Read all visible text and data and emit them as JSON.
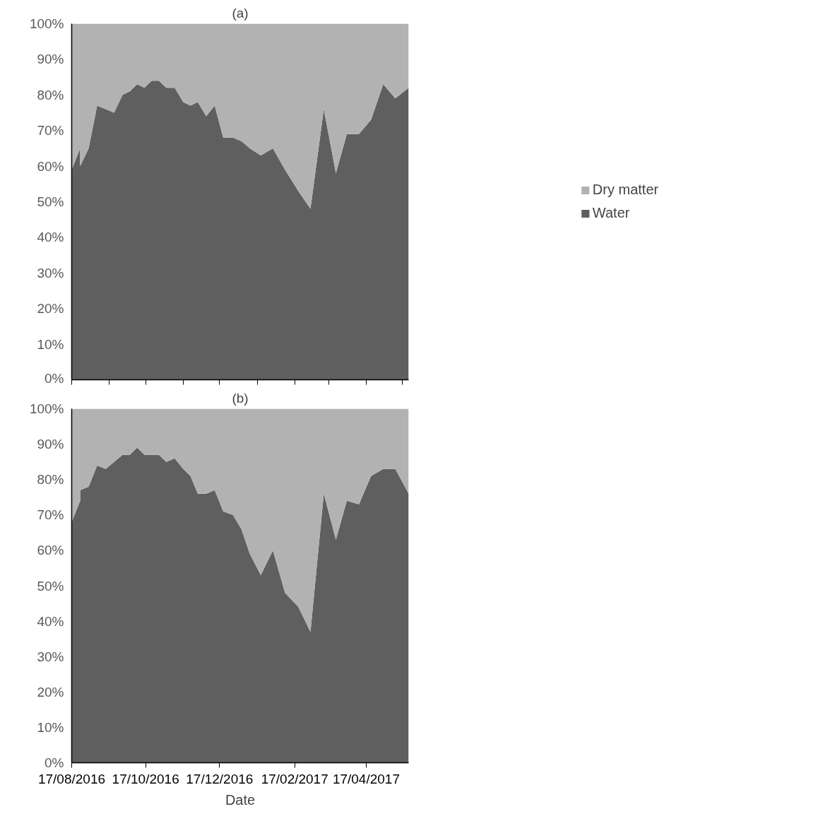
{
  "chart_data": [
    {
      "type": "area",
      "title": "(a)",
      "stacked": true,
      "legend": "right",
      "tick_labels": "y",
      "x": [
        "2016-08-17",
        "2016-08-24",
        "2016-08-24",
        "2016-08-31",
        "2016-09-07",
        "2016-09-14",
        "2016-09-21",
        "2016-09-28",
        "2016-10-04",
        "2016-10-10",
        "2016-10-16",
        "2016-10-22",
        "2016-10-28",
        "2016-11-03",
        "2016-11-10",
        "2016-11-17",
        "2016-11-23",
        "2016-11-29",
        "2016-12-06",
        "2016-12-13",
        "2016-12-20",
        "2016-12-28",
        "2017-01-04",
        "2017-01-11",
        "2017-01-20",
        "2017-01-30",
        "2017-02-09",
        "2017-02-20",
        "2017-03-02",
        "2017-03-13",
        "2017-03-23",
        "2017-04-01",
        "2017-04-11",
        "2017-04-21",
        "2017-05-01",
        "2017-05-11",
        "2017-05-22"
      ],
      "series": [
        {
          "name": "Water",
          "color": "#5f5f5f",
          "values": [
            59,
            65,
            60,
            65,
            77,
            76,
            75,
            80,
            81,
            83,
            82,
            84,
            84,
            82,
            82,
            78,
            77,
            78,
            74,
            77,
            68,
            68,
            67,
            65,
            63,
            65,
            59,
            53,
            48,
            76,
            58,
            69,
            69,
            73,
            83,
            79,
            82
          ]
        },
        {
          "name": "Dry matter",
          "color": "#b2b2b2",
          "values": [
            41,
            35,
            40,
            35,
            23,
            24,
            25,
            20,
            19,
            17,
            18,
            16,
            16,
            18,
            18,
            22,
            23,
            22,
            26,
            23,
            32,
            32,
            33,
            35,
            37,
            35,
            41,
            47,
            52,
            24,
            42,
            31,
            31,
            27,
            17,
            21,
            18
          ]
        }
      ],
      "xlim": [
        "2016-08-17",
        "2017-05-22"
      ],
      "xticks": [
        {
          "value": "2016-08-17",
          "label": null
        },
        {
          "value": "2016-09-17",
          "label": null
        },
        {
          "value": "2016-10-17",
          "label": null
        },
        {
          "value": "2016-11-17",
          "label": null
        },
        {
          "value": "2016-12-17",
          "label": null
        },
        {
          "value": "2017-01-17",
          "label": null
        },
        {
          "value": "2017-02-17",
          "label": null
        },
        {
          "value": "2017-03-17",
          "label": null
        },
        {
          "value": "2017-04-17",
          "label": null
        },
        {
          "value": "2017-05-17",
          "label": null
        }
      ],
      "ylim": [
        0,
        100
      ],
      "yticks": [
        {
          "value": 0,
          "label": "0%"
        },
        {
          "value": 10,
          "label": "10%"
        },
        {
          "value": 20,
          "label": "20%"
        },
        {
          "value": 30,
          "label": "30%"
        },
        {
          "value": 40,
          "label": "40%"
        },
        {
          "value": 50,
          "label": "50%"
        },
        {
          "value": 60,
          "label": "60%"
        },
        {
          "value": 70,
          "label": "70%"
        },
        {
          "value": 80,
          "label": "80%"
        },
        {
          "value": 90,
          "label": "90%"
        },
        {
          "value": 100,
          "label": "100%"
        }
      ]
    },
    {
      "type": "area",
      "title": "(b)",
      "xlabel": "Date",
      "stacked": true,
      "x": [
        "2016-08-17",
        "2016-08-24",
        "2016-08-24",
        "2016-08-31",
        "2016-09-07",
        "2016-09-14",
        "2016-09-21",
        "2016-09-28",
        "2016-10-04",
        "2016-10-10",
        "2016-10-16",
        "2016-10-22",
        "2016-10-28",
        "2016-11-03",
        "2016-11-10",
        "2016-11-17",
        "2016-11-23",
        "2016-11-29",
        "2016-12-06",
        "2016-12-13",
        "2016-12-20",
        "2016-12-28",
        "2017-01-04",
        "2017-01-11",
        "2017-01-20",
        "2017-01-30",
        "2017-02-09",
        "2017-02-20",
        "2017-03-02",
        "2017-03-13",
        "2017-03-23",
        "2017-04-01",
        "2017-04-11",
        "2017-04-21",
        "2017-05-01",
        "2017-05-11",
        "2017-05-22"
      ],
      "series": [
        {
          "color": "#5f5f5f",
          "values": [
            68,
            74,
            77,
            78,
            84,
            83,
            85,
            87,
            87,
            89,
            87,
            87,
            87,
            85,
            86,
            83,
            81,
            76,
            76,
            77,
            71,
            70,
            66,
            59,
            53,
            60,
            48,
            44,
            37,
            76,
            63,
            74,
            73,
            81,
            83,
            83,
            76
          ]
        },
        {
          "color": "#b2b2b2",
          "values": [
            32,
            26,
            23,
            22,
            16,
            17,
            15,
            13,
            13,
            11,
            13,
            13,
            13,
            15,
            14,
            17,
            19,
            24,
            24,
            23,
            29,
            30,
            34,
            41,
            47,
            40,
            52,
            56,
            63,
            24,
            37,
            26,
            27,
            19,
            17,
            17,
            24
          ]
        }
      ],
      "xlim": [
        "2016-08-17",
        "2017-05-22"
      ],
      "xticks": [
        {
          "value": "2016-08-17",
          "label": "17/08/2016"
        },
        {
          "value": "2016-10-17",
          "label": "17/10/2016"
        },
        {
          "value": "2016-12-17",
          "label": "17/12/2016"
        },
        {
          "value": "2017-02-17",
          "label": "17/02/2017"
        },
        {
          "value": "2017-04-17",
          "label": "17/04/2017"
        }
      ],
      "ylim": [
        0,
        100
      ],
      "yticks": [
        {
          "value": 0,
          "label": "0%"
        },
        {
          "value": 10,
          "label": "10%"
        },
        {
          "value": 20,
          "label": "20%"
        },
        {
          "value": 30,
          "label": "30%"
        },
        {
          "value": 40,
          "label": "40%"
        },
        {
          "value": 50,
          "label": "50%"
        },
        {
          "value": 60,
          "label": "60%"
        },
        {
          "value": 70,
          "label": "70%"
        },
        {
          "value": 80,
          "label": "80%"
        },
        {
          "value": 90,
          "label": "90%"
        },
        {
          "value": 100,
          "label": "100%"
        }
      ]
    }
  ]
}
